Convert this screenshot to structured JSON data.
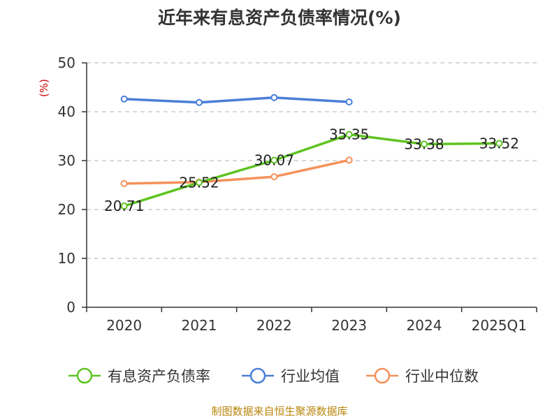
{
  "title": "近年来有息资产负债率情况(%)",
  "source": "制图数据来自恒生聚源数据库",
  "chart_data": {
    "type": "line",
    "title": "近年来有息资产负债率情况(%)",
    "ylabel": "(%)",
    "xlabel": "",
    "ylim": [
      0,
      50
    ],
    "yticks": [
      0,
      10,
      20,
      30,
      40,
      50
    ],
    "grid": true,
    "legend_position": "bottom",
    "categories": [
      "2020",
      "2021",
      "2022",
      "2023",
      "2024",
      "2025Q1"
    ],
    "series": [
      {
        "name": "有息资产负债率",
        "color": "#5ec421",
        "values": [
          20.71,
          25.52,
          30.07,
          35.35,
          33.38,
          33.52
        ],
        "labels": [
          "20.71",
          "25.52",
          "30.07",
          "35.35",
          "33.38",
          "33.52"
        ]
      },
      {
        "name": "行业均值",
        "color": "#4a7fd6",
        "values": [
          42.6,
          41.9,
          42.9,
          42.0,
          null,
          null
        ]
      },
      {
        "name": "行业中位数",
        "color": "#f5915a",
        "values": [
          25.3,
          25.6,
          26.7,
          30.1,
          null,
          null
        ]
      }
    ]
  }
}
